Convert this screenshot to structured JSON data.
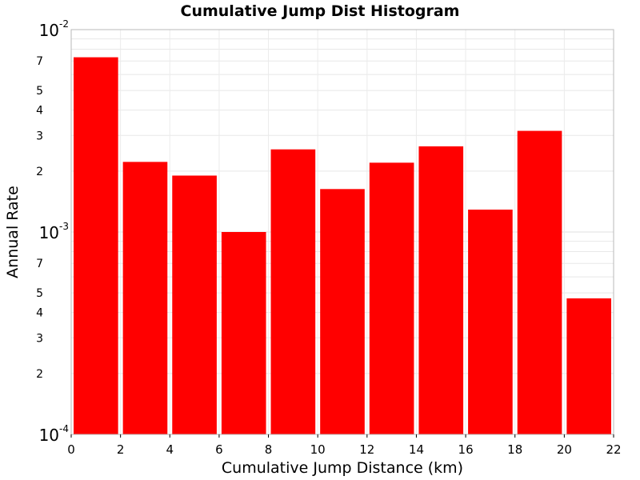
{
  "chart_data": {
    "type": "bar",
    "title": "Cumulative Jump Dist Histogram",
    "xlabel": "Cumulative Jump Distance (km)",
    "ylabel": "Annual Rate",
    "xlim": [
      0,
      22
    ],
    "ylim": [
      0.0001,
      0.01
    ],
    "yscale": "log",
    "grid": true,
    "legend": "none",
    "bar_color": "#ff0000",
    "bin_width": 2,
    "x": [
      1,
      3,
      5,
      7,
      9,
      11,
      13,
      15,
      17,
      19,
      21
    ],
    "values": [
      0.0073,
      0.00222,
      0.0019,
      0.001,
      0.00256,
      0.00163,
      0.0022,
      0.00265,
      0.00129,
      0.00316,
      0.00047
    ],
    "x_ticks": [
      "0",
      "2",
      "4",
      "6",
      "8",
      "10",
      "12",
      "14",
      "16",
      "18",
      "20",
      "22"
    ],
    "y_decade_ticks": [
      {
        "value": 0.01,
        "base": "10",
        "exp": "-2"
      },
      {
        "value": 0.001,
        "base": "10",
        "exp": "-3"
      },
      {
        "value": 0.0001,
        "base": "10",
        "exp": "-4"
      }
    ],
    "y_minor_labels": [
      {
        "value": 0.007,
        "label": "7"
      },
      {
        "value": 0.005,
        "label": "5"
      },
      {
        "value": 0.004,
        "label": "4"
      },
      {
        "value": 0.003,
        "label": "3"
      },
      {
        "value": 0.002,
        "label": "2"
      },
      {
        "value": 0.0007,
        "label": "7"
      },
      {
        "value": 0.0005,
        "label": "5"
      },
      {
        "value": 0.0004,
        "label": "4"
      },
      {
        "value": 0.0003,
        "label": "3"
      },
      {
        "value": 0.0002,
        "label": "2"
      }
    ]
  }
}
